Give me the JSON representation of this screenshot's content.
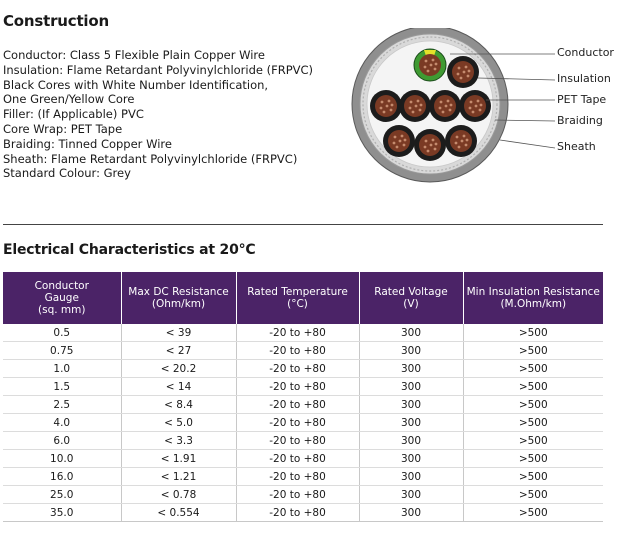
{
  "construction": {
    "title": "Construction",
    "lines": [
      "Conductor: Class 5 Flexible Plain Copper Wire",
      "Insulation: Flame Retardant Polyvinylchloride (FRPVC)",
      "Black Cores with White Number Identification,",
      "One Green/Yellow Core",
      "Filler: (If Applicable) PVC",
      "Core Wrap: PET Tape",
      "Braiding: Tinned Copper Wire",
      "Sheath: Flame Retardant Polyvinylchloride (FRPVC)",
      "Standard Colour: Grey"
    ]
  },
  "diagram": {
    "callouts": [
      "Conductor",
      "Insulation",
      "PET Tape",
      "Braiding",
      "Sheath"
    ],
    "colors": {
      "sheath": "#8f8f8f",
      "braiding": "#d9d9d9",
      "core_insulation": "#1c1c1c",
      "copper": "#7a3a24",
      "earth_green": "#3f9a32",
      "earth_yellow": "#e4e22a"
    }
  },
  "electrical": {
    "title": "Electrical Characteristics at 20°C",
    "header_color": "#4b2367",
    "headers": [
      [
        "Conductor",
        "Gauge",
        "(sq. mm)"
      ],
      [
        "Max DC Resistance",
        "(Ohm/km)"
      ],
      [
        "Rated Temperature",
        "(°C)"
      ],
      [
        "Rated Voltage",
        "(V)"
      ],
      [
        "Min Insulation Resistance",
        "(M.Ohm/km)"
      ]
    ],
    "rows": [
      [
        "0.5",
        "< 39",
        "-20 to +80",
        "300",
        ">500"
      ],
      [
        "0.75",
        "< 27",
        "-20 to +80",
        "300",
        ">500"
      ],
      [
        "1.0",
        "< 20.2",
        "-20 to +80",
        "300",
        ">500"
      ],
      [
        "1.5",
        "< 14",
        "-20 to +80",
        "300",
        ">500"
      ],
      [
        "2.5",
        "< 8.4",
        "-20 to +80",
        "300",
        ">500"
      ],
      [
        "4.0",
        "< 5.0",
        "-20 to +80",
        "300",
        ">500"
      ],
      [
        "6.0",
        "< 3.3",
        "-20 to +80",
        "300",
        ">500"
      ],
      [
        "10.0",
        "< 1.91",
        "-20 to +80",
        "300",
        ">500"
      ],
      [
        "16.0",
        "< 1.21",
        "-20 to +80",
        "300",
        ">500"
      ],
      [
        "25.0",
        "< 0.78",
        "-20 to +80",
        "300",
        ">500"
      ],
      [
        "35.0",
        "< 0.554",
        "-20 to +80",
        "300",
        ">500"
      ]
    ]
  }
}
